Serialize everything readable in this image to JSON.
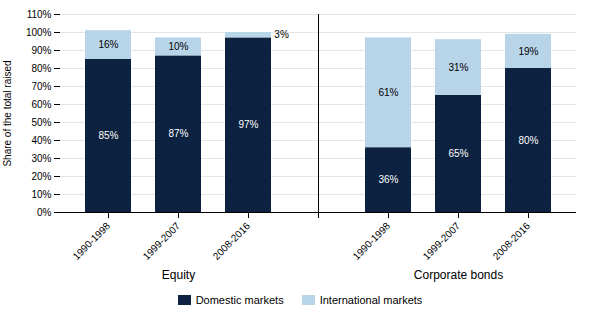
{
  "chart_data": {
    "type": "bar",
    "stacked": true,
    "data_labels": true,
    "grid": true,
    "legend": "bottom",
    "ylabel": "Share of the total raised",
    "categories": [
      "1990-1998",
      "1999-2007",
      "2008-2016",
      null,
      "1990-1998",
      "1999-2007",
      "2008-2016"
    ],
    "annotations": [
      "Equity",
      "Corporate bonds"
    ],
    "series": [
      {
        "name": "Domestic markets",
        "color": "#0d2240",
        "values": [
          85,
          87,
          97,
          null,
          36,
          65,
          80
        ],
        "value_labels": [
          "85%",
          "87%",
          "97%",
          null,
          "36%",
          "65%",
          "80%"
        ]
      },
      {
        "name": "International markets",
        "color": "#b8d4e8",
        "values": [
          16,
          10,
          3,
          null,
          61,
          31,
          19
        ],
        "value_labels": [
          "16%",
          "10%",
          "3%",
          null,
          "61%",
          "31%",
          "19%"
        ]
      }
    ],
    "ylim": [
      0,
      110
    ],
    "yticks": [
      {
        "value": 0,
        "label": "0%"
      },
      {
        "value": 10,
        "label": "10%"
      },
      {
        "value": 20,
        "label": "20%"
      },
      {
        "value": 30,
        "label": "30%"
      },
      {
        "value": 40,
        "label": "40%"
      },
      {
        "value": 50,
        "label": "50%"
      },
      {
        "value": 60,
        "label": "60%"
      },
      {
        "value": 70,
        "label": "70%"
      },
      {
        "value": 80,
        "label": "80%"
      },
      {
        "value": 90,
        "label": "90%"
      },
      {
        "value": 100,
        "label": "100%"
      },
      {
        "value": 110,
        "label": "110%"
      }
    ]
  }
}
